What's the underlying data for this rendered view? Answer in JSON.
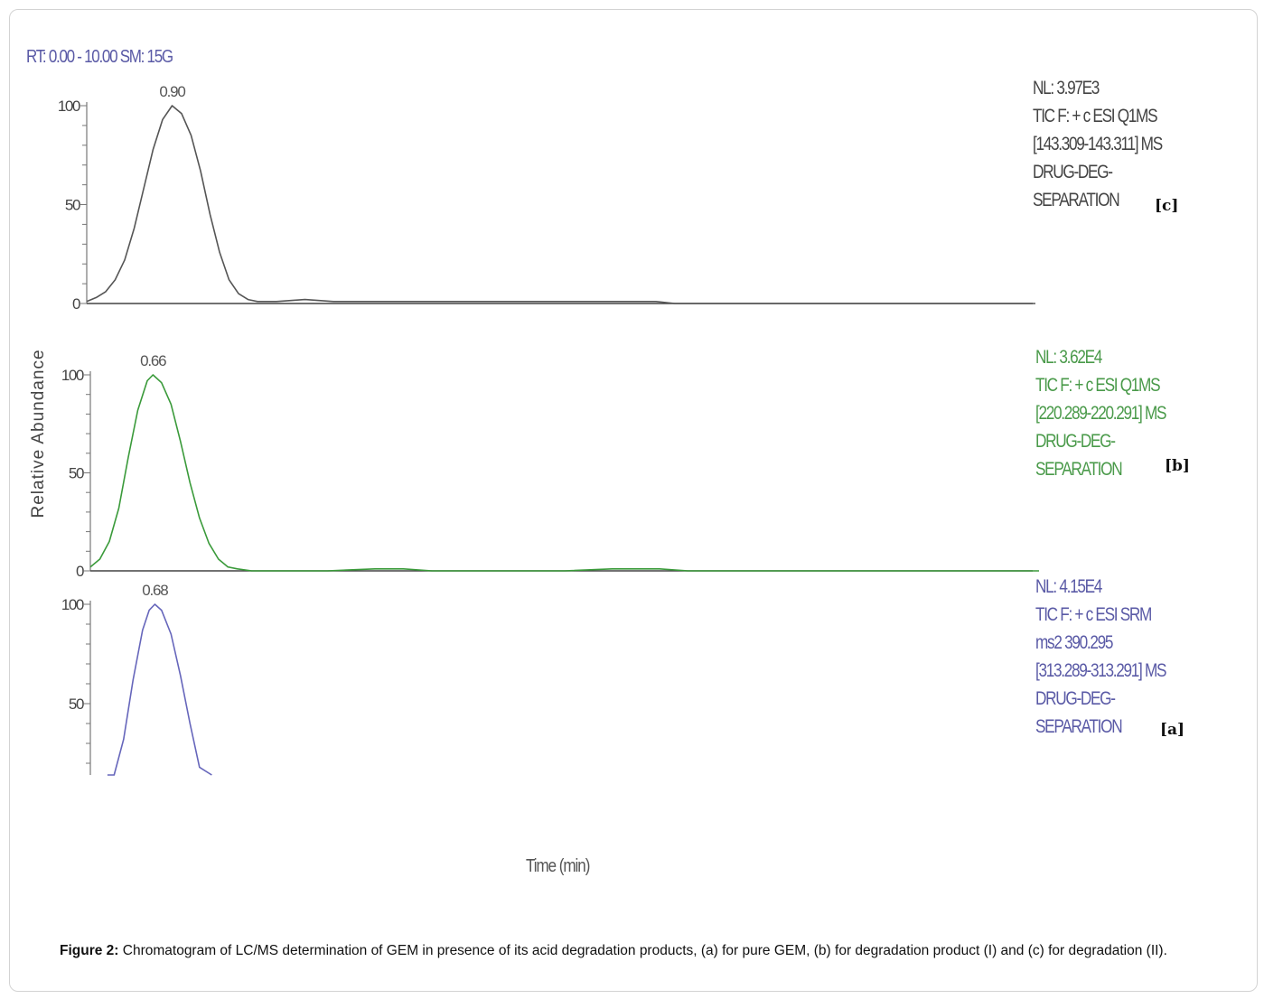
{
  "header": {
    "rt_label": "RT: 0.00 - 10.00  SM: 15G"
  },
  "axis_labels": {
    "y": "Relative Abundance",
    "x": "Time (min)"
  },
  "caption": {
    "label": "Figure 2:",
    "text": " Chromatogram of LC/MS determination of GEM in presence of its acid degradation products, (a) for pure GEM, (b) for degradation product (I) and (c) for degradation (II)."
  },
  "chart_data": [
    {
      "type": "line",
      "panel": "c",
      "color": "#555555",
      "xlim": [
        0,
        10
      ],
      "ylim": [
        0,
        100
      ],
      "yticks": [
        "0",
        "50",
        "100"
      ],
      "peak_label": "0.90",
      "info": [
        "NL: 3.97E3",
        "TIC F: + c ESI Q1MS",
        "[143.309-143.311] MS",
        "DRUG-DEG-",
        "SEPARATION"
      ],
      "tag": "[c]",
      "series": [
        {
          "x": [
            0.0,
            0.1,
            0.2,
            0.3,
            0.4,
            0.5,
            0.6,
            0.7,
            0.8,
            0.9,
            1.0,
            1.1,
            1.2,
            1.3,
            1.4,
            1.5,
            1.6,
            1.7,
            1.8,
            2.0,
            2.3,
            2.6,
            3.0,
            4.0,
            5.0,
            6.0,
            6.2,
            10.0
          ],
          "y": [
            1,
            3,
            6,
            12,
            22,
            38,
            58,
            78,
            93,
            100,
            96,
            85,
            67,
            45,
            26,
            12,
            5,
            2,
            1,
            1,
            2,
            1,
            1,
            1,
            1,
            1,
            0,
            0
          ]
        }
      ]
    },
    {
      "type": "line",
      "panel": "b",
      "color": "#3a9a3a",
      "xlim": [
        0,
        10
      ],
      "ylim": [
        0,
        100
      ],
      "yticks": [
        "0",
        "50",
        "100"
      ],
      "peak_label": "0.66",
      "info": [
        "NL: 3.62E4",
        "TIC F: + c ESI Q1MS",
        "[220.289-220.291] MS",
        "DRUG-DEG-",
        "SEPARATION"
      ],
      "tag": "[b]",
      "series": [
        {
          "x": [
            0.0,
            0.1,
            0.2,
            0.3,
            0.4,
            0.5,
            0.6,
            0.66,
            0.75,
            0.85,
            0.95,
            1.05,
            1.15,
            1.25,
            1.35,
            1.45,
            1.55,
            1.7,
            2.0,
            2.5,
            3.0,
            3.3,
            3.6,
            4.0,
            4.5,
            5.0,
            5.5,
            6.0,
            6.3,
            10.0
          ],
          "y": [
            2,
            6,
            15,
            32,
            58,
            82,
            97,
            100,
            96,
            85,
            66,
            45,
            27,
            14,
            6,
            2,
            1,
            0,
            0,
            0,
            1,
            1,
            0,
            0,
            0,
            0,
            1,
            1,
            0,
            0
          ]
        }
      ]
    },
    {
      "type": "line",
      "panel": "a",
      "color": "#6666bb",
      "xlim": [
        0,
        10
      ],
      "ylim": [
        0,
        100
      ],
      "yticks": [
        "50",
        "100"
      ],
      "peak_label": "0.68",
      "info": [
        "NL: 4.15E4",
        "TIC F: + c ESI SRM",
        "ms2 390.295",
        "[313.289-313.291] MS",
        "DRUG-DEG-",
        "SEPARATION"
      ],
      "tag": "[a]",
      "series": [
        {
          "x": [
            0.18,
            0.25,
            0.35,
            0.45,
            0.55,
            0.62,
            0.68,
            0.75,
            0.85,
            0.95,
            1.05,
            1.15,
            1.28
          ],
          "y": [
            0,
            10,
            32,
            62,
            87,
            97,
            100,
            97,
            85,
            64,
            40,
            18,
            0
          ]
        }
      ]
    }
  ]
}
